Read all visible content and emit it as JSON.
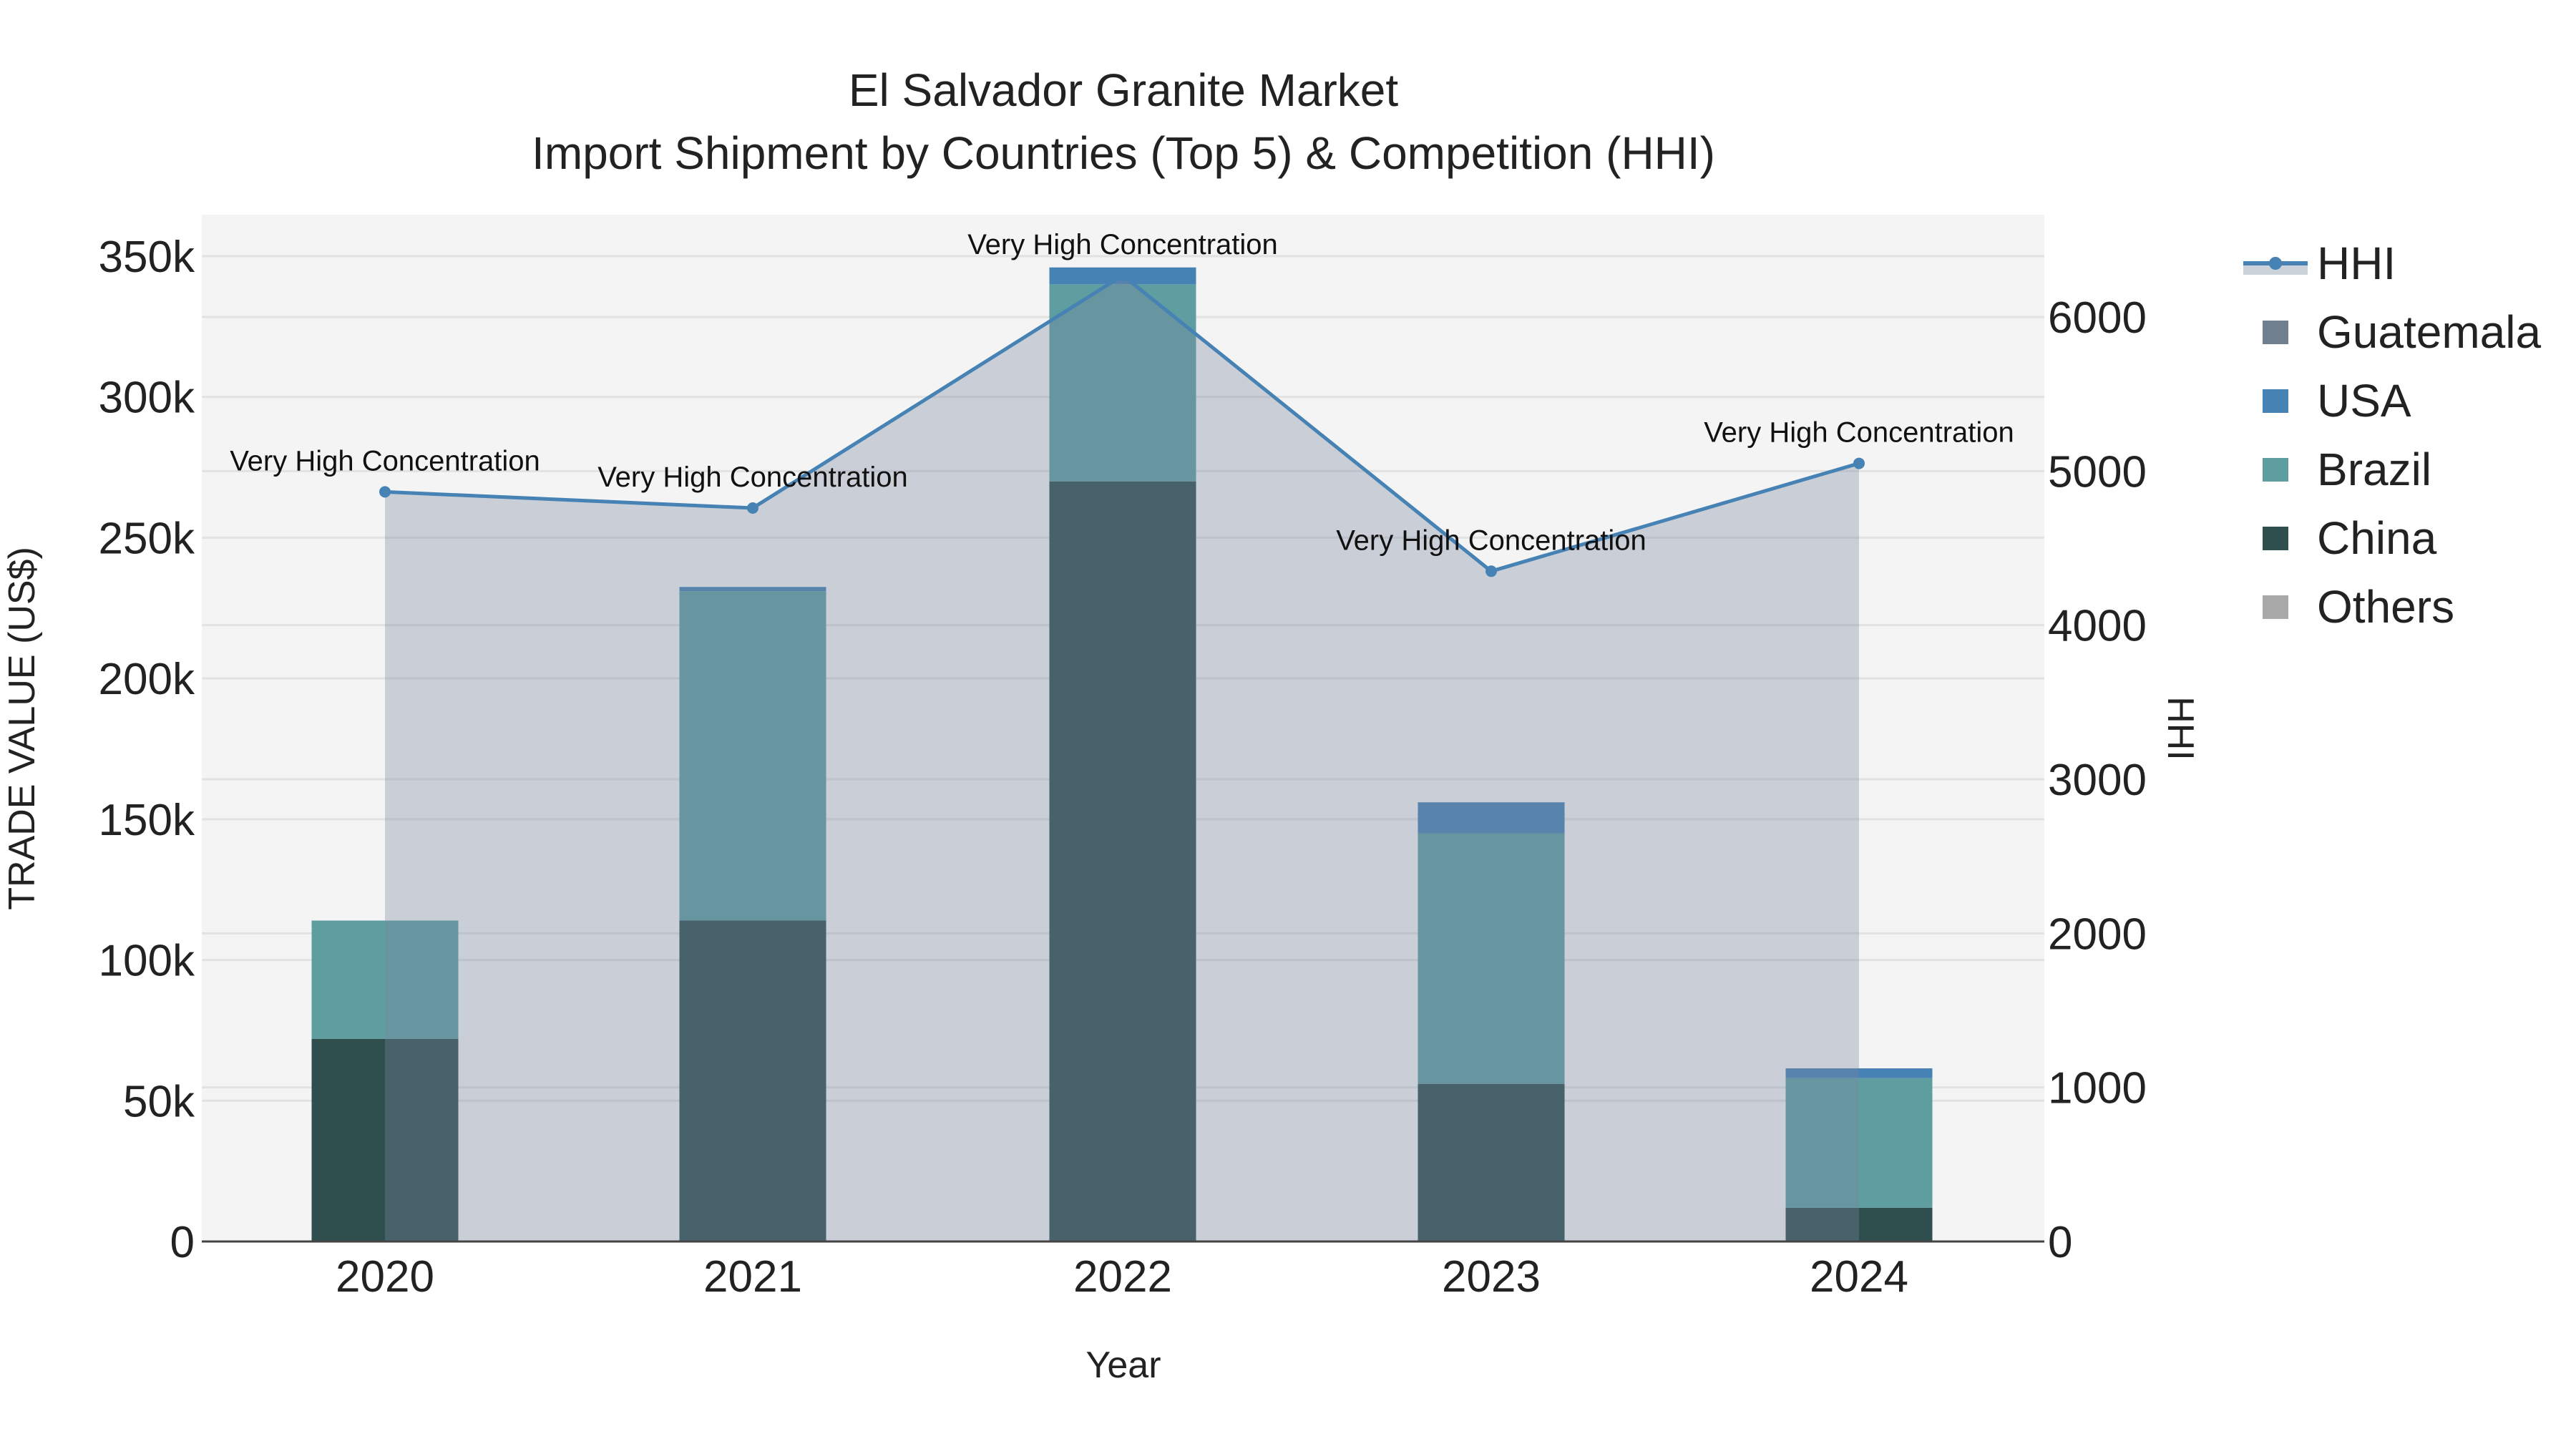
{
  "chart_data": {
    "type": "bar",
    "title": "El Salvador Granite Market",
    "subtitle": "Import Shipment by Countries (Top 5) & Competition (HHI)",
    "xlabel": "Year",
    "ylabel": "TRADE VALUE (US$)",
    "y2label": "HHI",
    "categories": [
      "2020",
      "2021",
      "2022",
      "2023",
      "2024"
    ],
    "stacked": true,
    "ylim": [
      0,
      362000
    ],
    "y2lim": [
      0,
      6640
    ],
    "y_ticks": [
      "0",
      "50k",
      "100k",
      "150k",
      "200k",
      "250k",
      "300k",
      "350k"
    ],
    "y_tick_values": [
      0,
      50000,
      100000,
      150000,
      200000,
      250000,
      300000,
      350000
    ],
    "y2_ticks": [
      "0",
      "1000",
      "2000",
      "3000",
      "4000",
      "5000",
      "6000"
    ],
    "y2_tick_values": [
      0,
      1000,
      2000,
      3000,
      4000,
      5000,
      6000
    ],
    "grid": true,
    "legend_position": "right",
    "series": [
      {
        "name": "China",
        "type": "bar",
        "color": "#2f4f4f",
        "values": [
          72000,
          114000,
          270000,
          56000,
          12000
        ]
      },
      {
        "name": "Brazil",
        "type": "bar",
        "color": "#5f9ea0",
        "values": [
          42000,
          117000,
          70000,
          89000,
          46000
        ]
      },
      {
        "name": "USA",
        "type": "bar",
        "color": "#4682b4",
        "values": [
          0,
          1500,
          6000,
          11000,
          3500
        ]
      },
      {
        "name": "Guatemala",
        "type": "bar",
        "color": "#708090",
        "values": [
          0,
          0,
          0,
          0,
          0
        ]
      },
      {
        "name": "Others",
        "type": "bar",
        "color": "#a9a9a9",
        "values": [
          0,
          0,
          0,
          0,
          0
        ]
      },
      {
        "name": "HHI",
        "type": "line",
        "axis": "y2",
        "color": "#4682b4",
        "fill": "tozeroy",
        "values": [
          4865,
          4760,
          6270,
          4350,
          5050
        ]
      }
    ],
    "annotations": [
      {
        "x": "2020",
        "text": "Very High Concentration"
      },
      {
        "x": "2021",
        "text": "Very High Concentration"
      },
      {
        "x": "2022",
        "text": "Very High Concentration"
      },
      {
        "x": "2023",
        "text": "Very High Concentration"
      },
      {
        "x": "2024",
        "text": "Very High Concentration"
      }
    ]
  },
  "legend": [
    {
      "label": "HHI",
      "kind": "line",
      "color": "#4682b4"
    },
    {
      "label": "Guatemala",
      "kind": "box",
      "color": "#708090"
    },
    {
      "label": "USA",
      "kind": "box",
      "color": "#4682b4"
    },
    {
      "label": "Brazil",
      "kind": "box",
      "color": "#5f9ea0"
    },
    {
      "label": "China",
      "kind": "box",
      "color": "#2f4f4f"
    },
    {
      "label": "Others",
      "kind": "box",
      "color": "#a9a9a9"
    }
  ],
  "colors": {
    "plot_bg": "#f4f4f4",
    "grid": "#e2e2e2",
    "hhi_fill": "rgba(120,135,160,0.35)"
  }
}
